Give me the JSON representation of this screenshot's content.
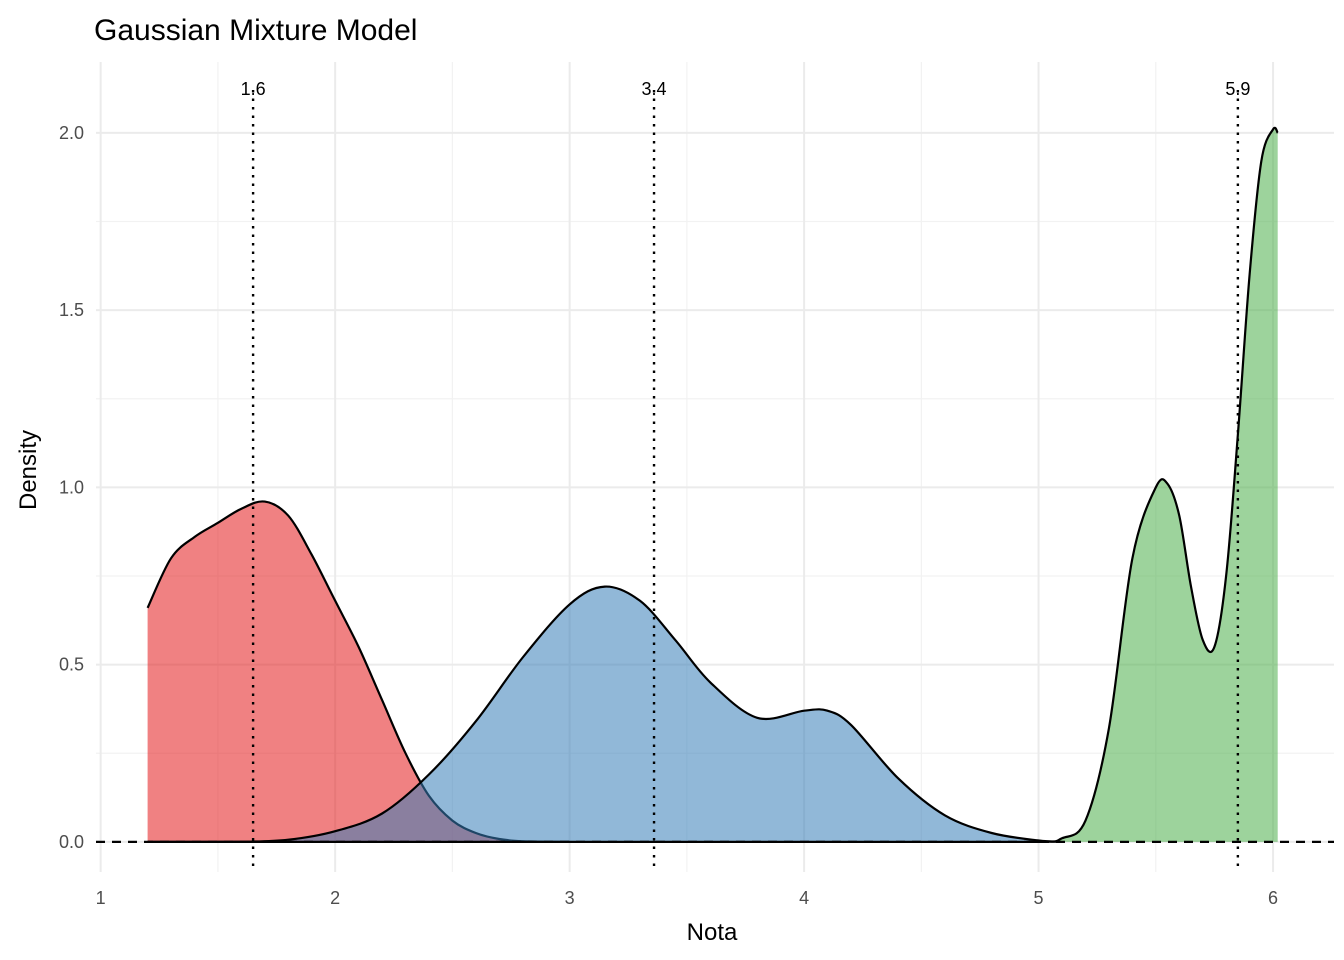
{
  "chart_data": {
    "type": "area",
    "title": "Gaussian Mixture Model",
    "xlabel": "Nota",
    "ylabel": "Density",
    "xlim": [
      0.98,
      6.26
    ],
    "ylim": [
      -0.085,
      2.2
    ],
    "x_ticks": [
      1,
      2,
      3,
      4,
      5,
      6
    ],
    "y_ticks": [
      0.0,
      0.5,
      1.0,
      1.5,
      2.0
    ],
    "x_tick_labels": [
      "1",
      "2",
      "3",
      "4",
      "5",
      "6"
    ],
    "y_tick_labels": [
      "0.0",
      "0.5",
      "1.0",
      "1.5",
      "2.0"
    ],
    "grid": true,
    "legend": "none",
    "baseline": {
      "y": 0,
      "style": "dashed"
    },
    "vlines": [
      {
        "x": 1.65,
        "label": "1.6"
      },
      {
        "x": 3.36,
        "label": "3.4"
      },
      {
        "x": 5.85,
        "label": "5.9"
      }
    ],
    "series": [
      {
        "color": "#e41a1c",
        "x": [
          1.2,
          1.3,
          1.4,
          1.5,
          1.6,
          1.7,
          1.8,
          1.9,
          2.0,
          2.1,
          2.2,
          2.3,
          2.4,
          2.5,
          2.6,
          2.7,
          2.8,
          3.0
        ],
        "y": [
          0.66,
          0.8,
          0.86,
          0.9,
          0.94,
          0.96,
          0.92,
          0.81,
          0.68,
          0.55,
          0.4,
          0.25,
          0.13,
          0.06,
          0.025,
          0.008,
          0.002,
          0.0
        ]
      },
      {
        "color": "#377eb8",
        "x": [
          1.2,
          1.6,
          1.8,
          2.0,
          2.2,
          2.4,
          2.6,
          2.8,
          3.0,
          3.15,
          3.3,
          3.45,
          3.6,
          3.8,
          4.0,
          4.1,
          4.2,
          4.4,
          4.6,
          4.8,
          5.0,
          5.1
        ],
        "y": [
          0.0,
          0.0005,
          0.006,
          0.03,
          0.08,
          0.19,
          0.34,
          0.52,
          0.67,
          0.72,
          0.68,
          0.57,
          0.45,
          0.35,
          0.37,
          0.37,
          0.33,
          0.18,
          0.075,
          0.025,
          0.004,
          0.0
        ]
      },
      {
        "color": "#4daf4a",
        "x": [
          1.2,
          5.0,
          5.1,
          5.2,
          5.3,
          5.4,
          5.5,
          5.55,
          5.6,
          5.65,
          5.7,
          5.75,
          5.8,
          5.85,
          5.9,
          5.95,
          6.0,
          6.02
        ],
        "y": [
          0.0,
          0.0,
          0.01,
          0.06,
          0.32,
          0.8,
          1.0,
          1.01,
          0.92,
          0.72,
          0.57,
          0.55,
          0.75,
          1.15,
          1.6,
          1.92,
          2.01,
          2.0
        ]
      }
    ]
  }
}
